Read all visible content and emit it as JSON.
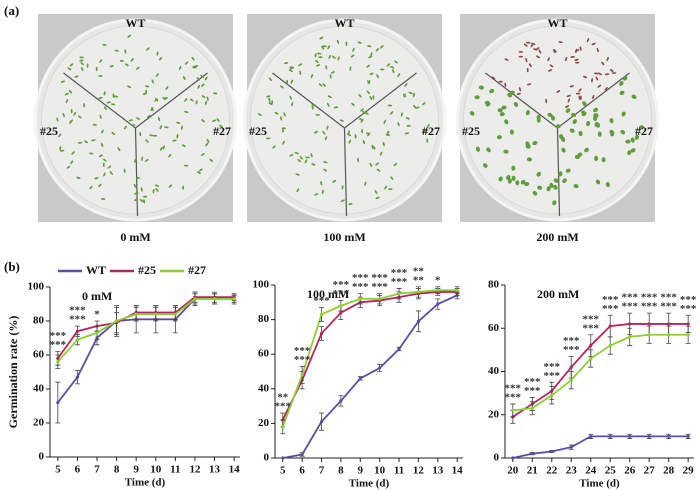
{
  "panel_a": {
    "label": "(a)",
    "plates": [
      {
        "caption": "0 mM",
        "labels": [
          "WT",
          "#25",
          "#27"
        ]
      },
      {
        "caption": "100 mM",
        "labels": [
          "WT",
          "#25",
          "#27"
        ]
      },
      {
        "caption": "200 mM",
        "labels": [
          "WT",
          "#25",
          "#27"
        ]
      }
    ]
  },
  "panel_b": {
    "label": "(b)"
  },
  "chart_data": [
    {
      "type": "line",
      "title": "0 mM",
      "xlabel": "Time (d)",
      "ylabel": "Germination rate (%)",
      "x": [
        5,
        6,
        7,
        8,
        9,
        10,
        11,
        12,
        13,
        14
      ],
      "xlim": [
        4.6,
        14.3
      ],
      "xticks": [
        5,
        6,
        7,
        8,
        9,
        10,
        11,
        12,
        13,
        14
      ],
      "ylim": [
        0,
        100
      ],
      "yticks": [
        0,
        20,
        40,
        60,
        80,
        100
      ],
      "series": [
        {
          "name": "WT",
          "color": "#5a4fa2",
          "values": [
            32,
            47,
            70,
            80,
            81,
            81,
            81,
            93,
            93,
            93
          ],
          "errors": [
            12,
            4,
            4,
            8,
            8,
            8,
            8,
            4,
            3,
            3
          ]
        },
        {
          "name": "#25",
          "color": "#b3255d",
          "values": [
            58,
            74,
            77,
            79,
            85,
            85,
            85,
            94,
            94,
            94
          ],
          "errors": [
            4,
            3,
            3,
            6,
            4,
            4,
            4,
            3,
            3,
            2
          ]
        },
        {
          "name": "#27",
          "color": "#8fce30",
          "values": [
            56,
            69,
            73,
            80,
            84,
            84,
            84,
            93,
            93,
            93
          ],
          "errors": [
            4,
            3,
            4,
            9,
            4,
            4,
            4,
            3,
            3,
            2
          ]
        }
      ],
      "annotations": [
        {
          "x": 5,
          "text": [
            "***",
            "***"
          ]
        },
        {
          "x": 6,
          "text": [
            "***",
            "***"
          ]
        },
        {
          "x": 7,
          "text": [
            "*"
          ]
        }
      ]
    },
    {
      "type": "line",
      "title": "100 mM",
      "xlabel": "Time (d)",
      "x": [
        5,
        6,
        7,
        8,
        9,
        10,
        11,
        12,
        13,
        14
      ],
      "xlim": [
        4.6,
        14.3
      ],
      "xticks": [
        5,
        6,
        7,
        8,
        9,
        10,
        11,
        12,
        13,
        14
      ],
      "ylim": [
        0,
        100
      ],
      "yticks": [
        0,
        20,
        40,
        60,
        80,
        100
      ],
      "series": [
        {
          "color": "#5a4fa2",
          "values": [
            0,
            2,
            21,
            33,
            46,
            52,
            63,
            79,
            89,
            94
          ],
          "errors": [
            0,
            1,
            5,
            3,
            1,
            2,
            1,
            6,
            3,
            2
          ]
        },
        {
          "color": "#b3255d",
          "values": [
            22,
            45,
            72,
            84,
            90,
            91,
            93,
            95,
            96,
            96
          ],
          "errors": [
            4,
            5,
            4,
            4,
            3,
            3,
            3,
            3,
            2,
            2
          ]
        },
        {
          "color": "#8fce30",
          "values": [
            18,
            48,
            83,
            88,
            92,
            92,
            95,
            96,
            97,
            97
          ],
          "errors": [
            4,
            5,
            4,
            3,
            3,
            3,
            3,
            3,
            2,
            2
          ]
        }
      ],
      "annotations": [
        {
          "x": 5,
          "text": [
            "**",
            "***"
          ]
        },
        {
          "x": 6,
          "text": [
            "***",
            "***"
          ]
        },
        {
          "x": 7,
          "text": [
            "***"
          ]
        },
        {
          "x": 8,
          "text": [
            "***",
            "***"
          ]
        },
        {
          "x": 9,
          "text": [
            "***",
            "***"
          ]
        },
        {
          "x": 10,
          "text": [
            "***",
            "***"
          ]
        },
        {
          "x": 11,
          "text": [
            "***",
            "***"
          ]
        },
        {
          "x": 12,
          "text": [
            "**",
            "**"
          ]
        },
        {
          "x": 13,
          "text": [
            "*"
          ]
        }
      ]
    },
    {
      "type": "line",
      "title": "200 mM",
      "xlabel": "Time (d)",
      "x": [
        20,
        21,
        22,
        23,
        24,
        25,
        26,
        27,
        28,
        29
      ],
      "xlim": [
        19.6,
        29.3
      ],
      "xticks": [
        20,
        21,
        22,
        23,
        24,
        25,
        26,
        27,
        28,
        29
      ],
      "ylim": [
        0,
        80
      ],
      "yticks": [
        0,
        20,
        40,
        60,
        80
      ],
      "series": [
        {
          "color": "#5a4fa2",
          "values": [
            0,
            2,
            3,
            5,
            10,
            10,
            10,
            10,
            10,
            10
          ],
          "errors": [
            0,
            0.5,
            0.5,
            1,
            1,
            1,
            1,
            1,
            1,
            1
          ]
        },
        {
          "color": "#b3255d",
          "values": [
            19,
            25,
            31,
            42,
            52,
            61,
            62,
            62,
            62,
            62
          ],
          "errors": [
            3,
            3,
            4,
            5,
            5,
            5,
            5,
            5,
            5,
            4
          ]
        },
        {
          "color": "#8fce30",
          "values": [
            22,
            23,
            29,
            36,
            46,
            52,
            56,
            57,
            57,
            57
          ],
          "errors": [
            3,
            3,
            4,
            4,
            4,
            4,
            4,
            4,
            4,
            4
          ]
        }
      ],
      "annotations": [
        {
          "x": 20,
          "text": [
            "***",
            "***"
          ]
        },
        {
          "x": 21,
          "text": [
            "***",
            "***"
          ]
        },
        {
          "x": 22,
          "text": [
            "***",
            "***"
          ]
        },
        {
          "x": 23,
          "text": [
            "***",
            "***"
          ]
        },
        {
          "x": 24,
          "text": [
            "***",
            "***"
          ]
        },
        {
          "x": 25,
          "text": [
            "***",
            "***"
          ]
        },
        {
          "x": 26,
          "text": [
            "***",
            "***"
          ]
        },
        {
          "x": 27,
          "text": [
            "***",
            "***"
          ]
        },
        {
          "x": 28,
          "text": [
            "***",
            "***"
          ]
        },
        {
          "x": 29,
          "text": [
            "***",
            "***"
          ]
        }
      ]
    }
  ]
}
